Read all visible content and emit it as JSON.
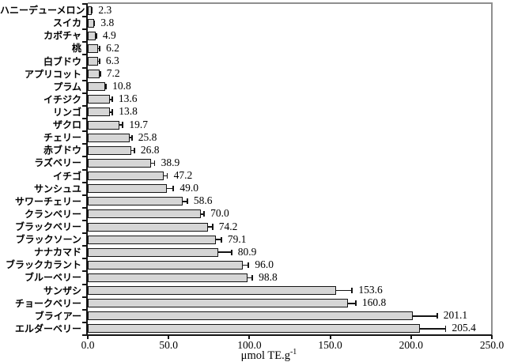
{
  "chart_data": {
    "type": "bar",
    "orientation": "horizontal",
    "title": "",
    "xlabel_base": "μmol TE.g",
    "xlabel_sup": "-1",
    "xlim": [
      0,
      250
    ],
    "x_tick_values": [
      0,
      50,
      100,
      150,
      200,
      250
    ],
    "x_tick_labels": [
      "0.0",
      "50.0",
      "100.0",
      "150.0",
      "200.0",
      "250.0"
    ],
    "grid": false,
    "legend": "none",
    "categories": [
      "ハニーデューメロン",
      "スイカ",
      "カボチャ",
      "桃",
      "白ブドウ",
      "アプリコット",
      "プラム",
      "イチジク",
      "リンゴ",
      "ザクロ",
      "チェリー",
      "赤ブドウ",
      "ラズベリー",
      "イチゴ",
      "サンシュユ",
      "サワーチェリー",
      "クランベリー",
      "ブラックベリー",
      "ブラックソーン",
      "ナナカマド",
      "ブラックカラント",
      "ブルーベリー",
      "サンザシ",
      "チョークベリー",
      "ブライアー",
      "エルダーベリー"
    ],
    "values": [
      2.3,
      3.8,
      4.9,
      6.2,
      6.3,
      7.2,
      10.8,
      13.6,
      13.8,
      19.7,
      25.8,
      26.8,
      38.9,
      47.2,
      49.0,
      58.6,
      70.0,
      74.2,
      79.1,
      80.9,
      96.0,
      98.8,
      153.6,
      160.8,
      201.1,
      205.4
    ],
    "value_labels": [
      "2.3",
      "3.8",
      "4.9",
      "6.2",
      "6.3",
      "7.2",
      "10.8",
      "13.6",
      "13.8",
      "19.7",
      "25.8",
      "26.8",
      "38.9",
      "47.2",
      "49.0",
      "58.6",
      "70.0",
      "74.2",
      "79.1",
      "80.9",
      "96.0",
      "98.8",
      "153.6",
      "160.8",
      "201.1",
      "205.4"
    ],
    "errors_plus": [
      0.3,
      0.3,
      0.4,
      1.2,
      1.0,
      0.5,
      0.5,
      1.5,
      1.5,
      2.0,
      1.5,
      2.0,
      2.5,
      2.0,
      4.0,
      3.0,
      2.0,
      3.0,
      3.5,
      8.0,
      3.5,
      3.0,
      10.0,
      5.0,
      15.0,
      16.0
    ],
    "colors": {
      "bar_fill": "#d6d6d6",
      "bar_border": "#141414",
      "axis": "#141414",
      "frame": "#8f8f8f",
      "text": "#000000",
      "background": "#ffffff"
    }
  }
}
